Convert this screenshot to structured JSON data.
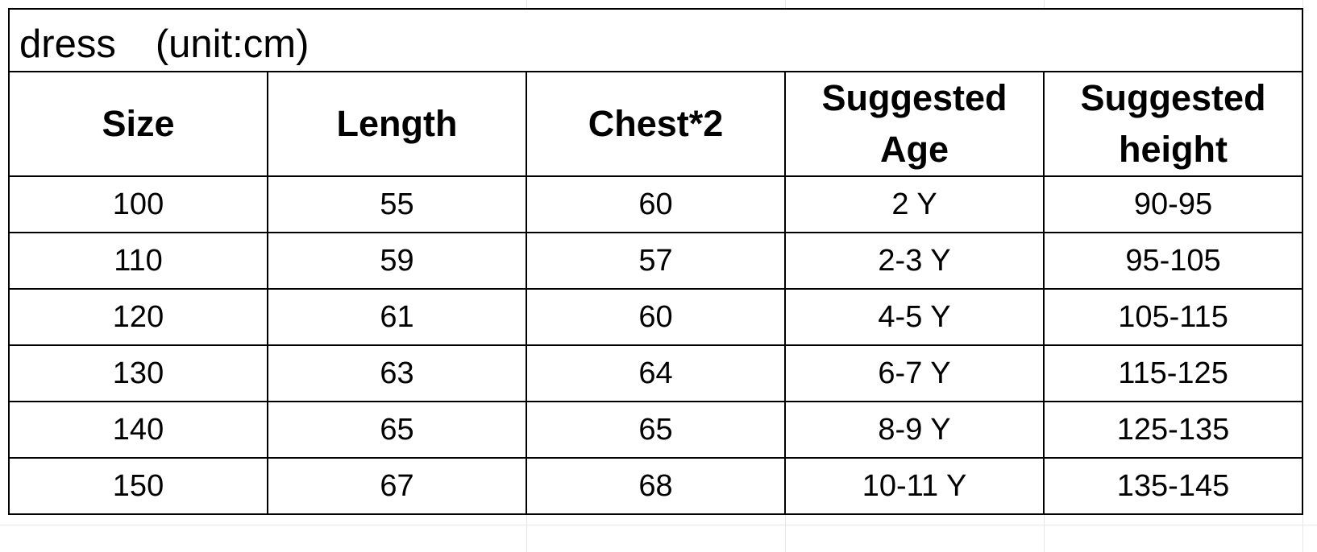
{
  "title": "dress　(unit:cm)",
  "headers": [
    "Size",
    "Length",
    "Chest*2",
    "Suggested Age",
    "Suggested height"
  ],
  "rows": [
    [
      "100",
      "55",
      "60",
      "2 Y",
      "90-95"
    ],
    [
      "110",
      "59",
      "57",
      "2-3 Y",
      "95-105"
    ],
    [
      "120",
      "61",
      "60",
      "4-5 Y",
      "105-115"
    ],
    [
      "130",
      "63",
      "64",
      "6-7 Y",
      "115-125"
    ],
    [
      "140",
      "65",
      "65",
      "8-9 Y",
      "125-135"
    ],
    [
      "150",
      "67",
      "68",
      "10-11 Y",
      "135-145"
    ]
  ],
  "colors": {
    "border": "#000000",
    "background": "#ffffff",
    "sheet_gridline": "#e6e6e6"
  }
}
